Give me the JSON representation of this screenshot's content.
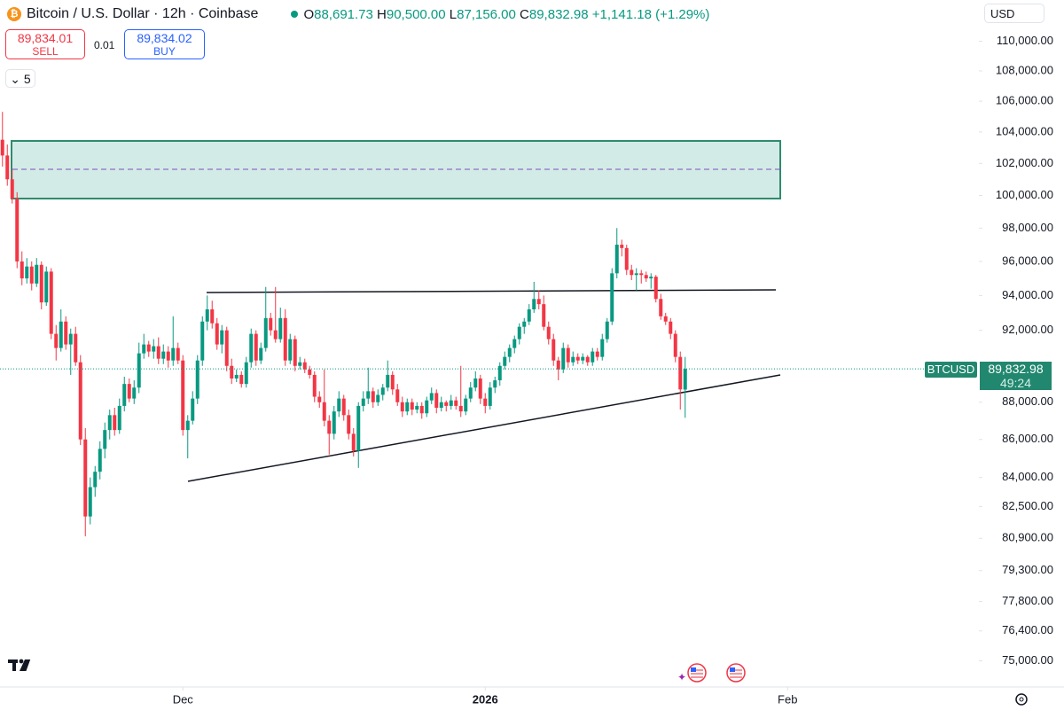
{
  "toolbar": {
    "symbol_title": "Bitcoin / U.S. Dollar · 12h · Coinbase",
    "legend": [
      {
        "key": "O",
        "value": "88,691.73"
      },
      {
        "key": "H",
        "value": "90,500.00"
      },
      {
        "key": "L",
        "value": "87,156.00"
      },
      {
        "key": "C",
        "value": "89,832.98"
      }
    ],
    "change": "+1,141.18 (+1.29%)",
    "currency": "USD",
    "sell_price": "89,834.01",
    "sell": "SELL",
    "spread": "0.01",
    "buy_price": "89,834.02",
    "buy": "BUY",
    "indicators_count": "5"
  },
  "price_tag": {
    "symbol": "BTCUSD",
    "price": "89,832.98",
    "countdown": "49:24"
  },
  "chart_data": {
    "type": "candlestick",
    "up_color": "#089981",
    "down_color": "#f23645",
    "log_scale": true,
    "ylim": [
      74000,
      111000
    ],
    "yticks": [
      {
        "value": 110000,
        "label": "110,000.00"
      },
      {
        "value": 108000,
        "label": "108,000.00"
      },
      {
        "value": 106000,
        "label": "106,000.00"
      },
      {
        "value": 104000,
        "label": "104,000.00"
      },
      {
        "value": 102000,
        "label": "102,000.00"
      },
      {
        "value": 100000,
        "label": "100,000.00"
      },
      {
        "value": 98000,
        "label": "98,000.00"
      },
      {
        "value": 96000,
        "label": "96,000.00"
      },
      {
        "value": 94000,
        "label": "94,000.00"
      },
      {
        "value": 92000,
        "label": "92,000.00"
      },
      {
        "value": 88000,
        "label": "88,000.00"
      },
      {
        "value": 86000,
        "label": "86,000.00"
      },
      {
        "value": 84000,
        "label": "84,000.00"
      },
      {
        "value": 82500,
        "label": "82,500.00"
      },
      {
        "value": 80900,
        "label": "80,900.00"
      },
      {
        "value": 79300,
        "label": "79,300.00"
      },
      {
        "value": 77800,
        "label": "77,800.00"
      },
      {
        "value": 76400,
        "label": "76,400.00"
      },
      {
        "value": 75000,
        "label": "75,000.00"
      }
    ],
    "xlim": [
      -0.5,
      199.5
    ],
    "xticks": [
      {
        "value": 37,
        "label": "Dec"
      },
      {
        "value": 99,
        "label": "2026"
      },
      {
        "value": 161,
        "label": "Feb"
      }
    ],
    "ohlc": [
      [
        103500,
        105300,
        101800,
        102500
      ],
      [
        102500,
        103200,
        100600,
        101000
      ],
      [
        101000,
        101600,
        99500,
        99800
      ],
      [
        99800,
        100200,
        95600,
        96000
      ],
      [
        96000,
        96600,
        94600,
        95000
      ],
      [
        95000,
        96200,
        94700,
        95700
      ],
      [
        95700,
        96000,
        94300,
        94700
      ],
      [
        94700,
        96200,
        94500,
        95800
      ],
      [
        95800,
        96000,
        93200,
        93600
      ],
      [
        93600,
        95700,
        93400,
        95400
      ],
      [
        95400,
        95600,
        91500,
        91800
      ],
      [
        91800,
        92300,
        90300,
        91000
      ],
      [
        91000,
        93200,
        90800,
        92500
      ],
      [
        92500,
        92800,
        90900,
        91200
      ],
      [
        91200,
        92100,
        89500,
        91800
      ],
      [
        91800,
        92200,
        90000,
        90200
      ],
      [
        90200,
        90600,
        85700,
        86000
      ],
      [
        86000,
        86600,
        81000,
        82000
      ],
      [
        82000,
        84000,
        81600,
        83500
      ],
      [
        83500,
        84600,
        83000,
        84300
      ],
      [
        84300,
        85900,
        83900,
        85500
      ],
      [
        85500,
        86900,
        85000,
        86500
      ],
      [
        86500,
        87600,
        86000,
        87300
      ],
      [
        87300,
        87700,
        86200,
        86500
      ],
      [
        86500,
        88200,
        86300,
        87800
      ],
      [
        87800,
        89400,
        87500,
        89000
      ],
      [
        89000,
        89300,
        88000,
        88200
      ],
      [
        88200,
        89200,
        87900,
        88800
      ],
      [
        88800,
        91300,
        88500,
        90700
      ],
      [
        90700,
        91800,
        90400,
        91200
      ],
      [
        91200,
        91400,
        90500,
        90800
      ],
      [
        90800,
        91500,
        90400,
        91100
      ],
      [
        91100,
        91600,
        90100,
        90400
      ],
      [
        90400,
        91200,
        90100,
        90800
      ],
      [
        90800,
        91100,
        89900,
        90300
      ],
      [
        90300,
        92800,
        90000,
        91000
      ],
      [
        91000,
        91300,
        90100,
        90300
      ],
      [
        90300,
        90600,
        86200,
        86500
      ],
      [
        86500,
        87300,
        85000,
        87000
      ],
      [
        87000,
        88600,
        86800,
        88200
      ],
      [
        88200,
        90600,
        87900,
        90300
      ],
      [
        90300,
        92800,
        90000,
        92500
      ],
      [
        92500,
        94000,
        92000,
        93200
      ],
      [
        93200,
        93700,
        92100,
        92400
      ],
      [
        92400,
        92700,
        90900,
        91200
      ],
      [
        91200,
        92300,
        90700,
        92000
      ],
      [
        92000,
        92200,
        89700,
        90000
      ],
      [
        90000,
        90400,
        89000,
        89300
      ],
      [
        89300,
        89800,
        89100,
        89500
      ],
      [
        89500,
        89700,
        88800,
        89000
      ],
      [
        89000,
        90500,
        88800,
        90200
      ],
      [
        90200,
        92100,
        89900,
        91800
      ],
      [
        91800,
        92000,
        90000,
        90300
      ],
      [
        90300,
        91300,
        90100,
        91000
      ],
      [
        91000,
        94500,
        90800,
        92700
      ],
      [
        92700,
        93000,
        91700,
        92000
      ],
      [
        92000,
        94500,
        91300,
        91500
      ],
      [
        91500,
        93300,
        91300,
        92700
      ],
      [
        92700,
        93200,
        90000,
        90300
      ],
      [
        90300,
        91800,
        90100,
        91500
      ],
      [
        91500,
        91700,
        89700,
        90000
      ],
      [
        90000,
        90500,
        89800,
        90200
      ],
      [
        90200,
        90400,
        89600,
        89800
      ],
      [
        89800,
        90000,
        89300,
        89500
      ],
      [
        89500,
        89700,
        88000,
        88300
      ],
      [
        88300,
        88600,
        87700,
        88000
      ],
      [
        88000,
        89800,
        86700,
        87000
      ],
      [
        87000,
        87300,
        85200,
        86300
      ],
      [
        86300,
        87800,
        86000,
        87500
      ],
      [
        87500,
        88600,
        87200,
        88200
      ],
      [
        88200,
        88400,
        87000,
        87300
      ],
      [
        87300,
        87600,
        86000,
        86300
      ],
      [
        86300,
        86600,
        85100,
        85400
      ],
      [
        85400,
        88000,
        84500,
        87800
      ],
      [
        87800,
        88600,
        87500,
        88200
      ],
      [
        88200,
        89900,
        87900,
        88600
      ],
      [
        88600,
        88800,
        87700,
        88000
      ],
      [
        88000,
        88700,
        87800,
        88400
      ],
      [
        88400,
        89000,
        88100,
        88800
      ],
      [
        88800,
        90300,
        88600,
        89500
      ],
      [
        89500,
        89700,
        88400,
        88700
      ],
      [
        88700,
        89000,
        87800,
        88000
      ],
      [
        88000,
        88300,
        87200,
        87500
      ],
      [
        87500,
        88200,
        87300,
        88000
      ],
      [
        88000,
        88200,
        87300,
        87600
      ],
      [
        87600,
        88000,
        87400,
        87800
      ],
      [
        87800,
        88000,
        87100,
        87400
      ],
      [
        87400,
        88300,
        87200,
        88100
      ],
      [
        88100,
        88800,
        87900,
        88500
      ],
      [
        88500,
        88700,
        87400,
        87700
      ],
      [
        87700,
        88300,
        87500,
        88000
      ],
      [
        88000,
        88100,
        87500,
        87800
      ],
      [
        87800,
        88400,
        87600,
        88100
      ],
      [
        88100,
        88300,
        87600,
        87800
      ],
      [
        87800,
        90000,
        87200,
        87500
      ],
      [
        87500,
        88400,
        87300,
        88200
      ],
      [
        88200,
        89100,
        88000,
        88800
      ],
      [
        88800,
        89700,
        88600,
        89300
      ],
      [
        89300,
        89500,
        87900,
        88200
      ],
      [
        88200,
        88500,
        87400,
        87800
      ],
      [
        87800,
        89100,
        87600,
        88800
      ],
      [
        88800,
        89400,
        88500,
        89200
      ],
      [
        89200,
        90200,
        88900,
        90000
      ],
      [
        90000,
        90800,
        89800,
        90500
      ],
      [
        90500,
        91200,
        90200,
        91000
      ],
      [
        91000,
        91700,
        90700,
        91500
      ],
      [
        91500,
        92400,
        91200,
        92200
      ],
      [
        92200,
        92700,
        91800,
        92500
      ],
      [
        92500,
        93500,
        92300,
        93200
      ],
      [
        93200,
        94800,
        93000,
        93800
      ],
      [
        93800,
        94300,
        93200,
        93500
      ],
      [
        93500,
        94000,
        92000,
        92200
      ],
      [
        92200,
        92500,
        91200,
        91500
      ],
      [
        91500,
        91800,
        90000,
        90300
      ],
      [
        90300,
        90500,
        89200,
        89800
      ],
      [
        89800,
        91300,
        89600,
        91000
      ],
      [
        91000,
        91200,
        89900,
        90200
      ],
      [
        90200,
        90800,
        90000,
        90500
      ],
      [
        90500,
        90700,
        90100,
        90300
      ],
      [
        90300,
        90700,
        90100,
        90500
      ],
      [
        90500,
        90600,
        90000,
        90200
      ],
      [
        90200,
        91000,
        90000,
        90800
      ],
      [
        90800,
        91000,
        90300,
        90500
      ],
      [
        90500,
        91800,
        90300,
        91500
      ],
      [
        91500,
        92700,
        91300,
        92500
      ],
      [
        92500,
        95600,
        92300,
        95300
      ],
      [
        95300,
        98000,
        95000,
        97000
      ],
      [
        97000,
        97300,
        96300,
        96800
      ],
      [
        96800,
        97000,
        95200,
        95500
      ],
      [
        95500,
        95800,
        94900,
        95200
      ],
      [
        95200,
        95600,
        94300,
        95300
      ],
      [
        95300,
        95500,
        94700,
        95200
      ],
      [
        95200,
        95400,
        94800,
        95000
      ],
      [
        95000,
        95300,
        94400,
        95100
      ],
      [
        95100,
        95200,
        93600,
        93800
      ],
      [
        93800,
        94100,
        92600,
        92800
      ],
      [
        92800,
        93000,
        92300,
        92500
      ],
      [
        92500,
        92700,
        91500,
        91800
      ],
      [
        91800,
        92000,
        90200,
        90500
      ],
      [
        90500,
        90800,
        87600,
        88700
      ],
      [
        88691.73,
        90500,
        87156,
        89832.98
      ]
    ]
  }
}
